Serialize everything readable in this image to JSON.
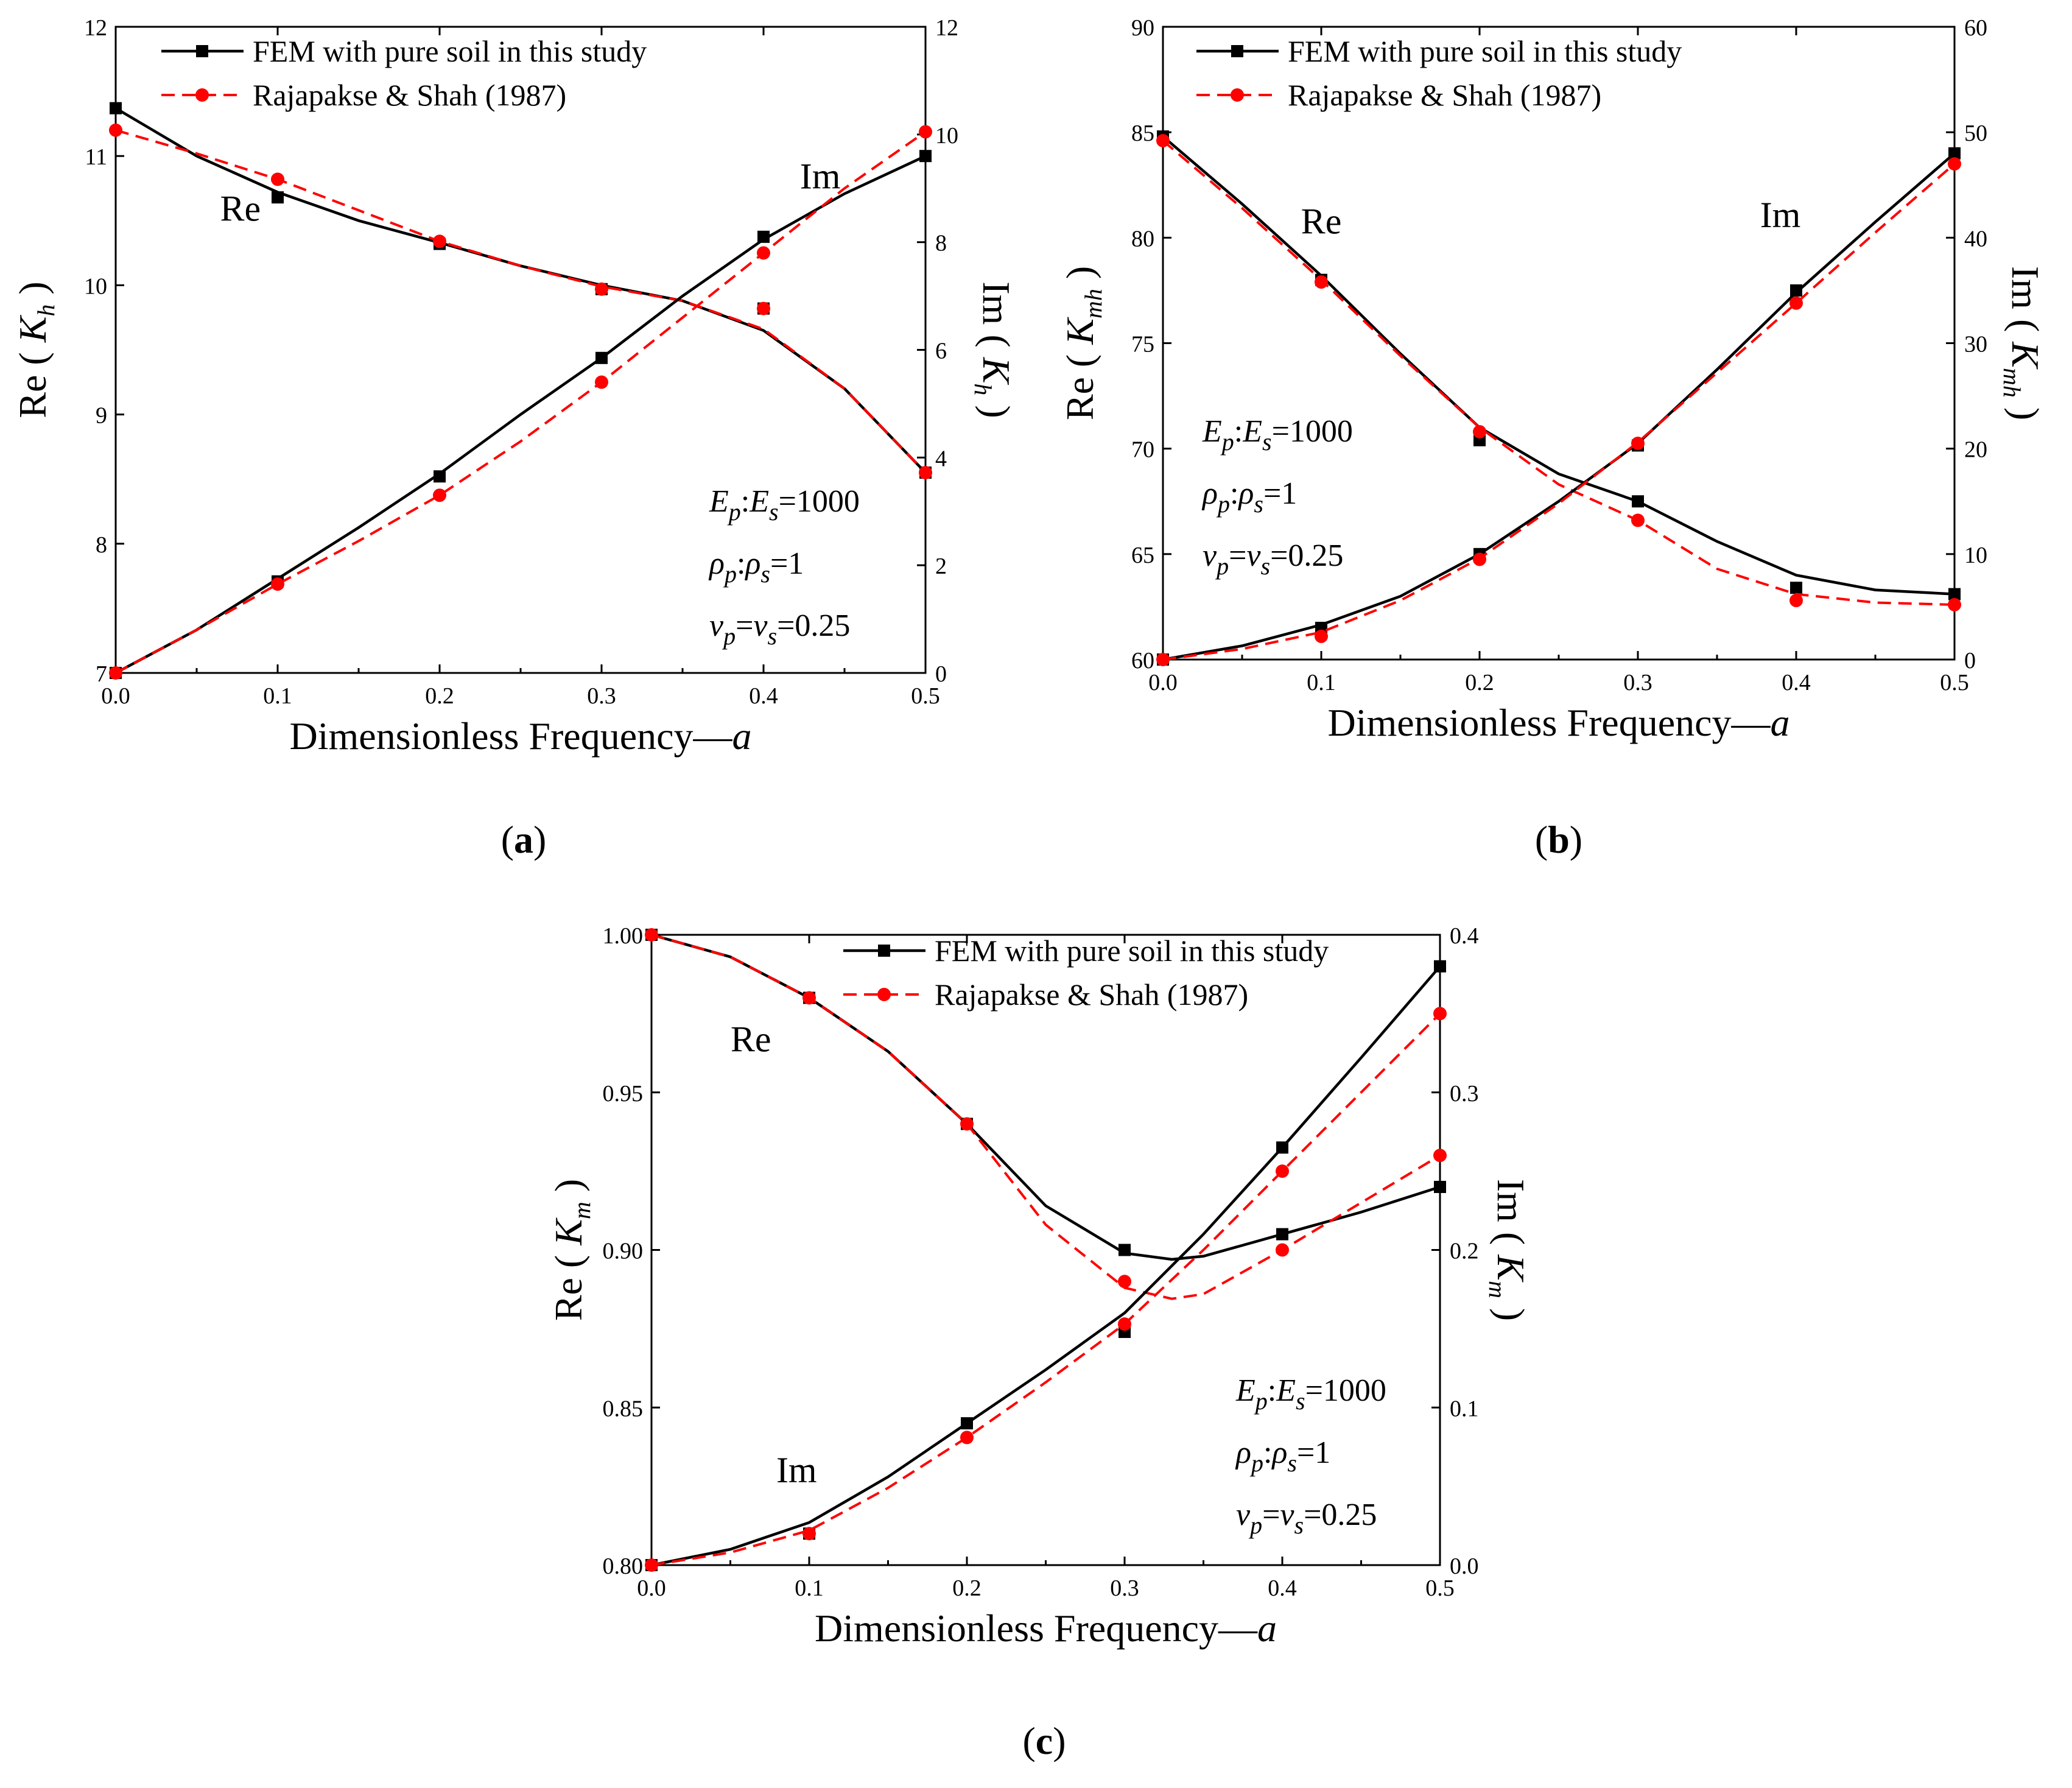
{
  "legend_labels": [
    "FEM with pure soil in this study",
    "Rajapakse & Shah (1987)"
  ],
  "series_colors": {
    "fem": "#000000",
    "ref": "#ff0000"
  },
  "params": {
    "line1": [
      "E",
      "p",
      ":",
      "E",
      "s",
      "=1000"
    ],
    "line2": [
      "ρ",
      "p",
      ":",
      "ρ",
      "s",
      "=1"
    ],
    "line3": [
      "ν",
      "p",
      "=",
      "ν",
      "s",
      "=0.25"
    ]
  },
  "chart_data": [
    {
      "type": "line",
      "panel_label": "(a)",
      "panel_main": "a",
      "xlabel": "Dimensionless Frequency—",
      "xlabel_var": "a",
      "ylabel_left": {
        "prefix": "Re (",
        "sym": "K",
        "sub": "h",
        "suffix": ")"
      },
      "ylabel_right": {
        "prefix": "Im (",
        "sym": "K",
        "sub": "h",
        "suffix": ")"
      },
      "xlim": [
        0,
        0.5
      ],
      "xticks": [
        "0.0",
        "0.1",
        "0.2",
        "0.3",
        "0.4",
        "0.5"
      ],
      "ylim_left": [
        7,
        12
      ],
      "yticks_left": [
        "7",
        "8",
        "9",
        "10",
        "11",
        "12"
      ],
      "ylim_right": [
        0,
        12
      ],
      "yticks_right": [
        "0",
        "2",
        "4",
        "6",
        "8",
        "10",
        "12"
      ],
      "annotations": [
        {
          "text": "Re",
          "x": 0.077,
          "y": 10.5,
          "axis": "left"
        },
        {
          "text": "Im",
          "x": 0.435,
          "y": 9.0,
          "axis": "right"
        }
      ],
      "x": [
        0,
        0.1,
        0.2,
        0.3,
        0.4,
        0.5
      ],
      "series": [
        {
          "name": "FEM with pure soil in this study",
          "part": "Re",
          "axis": "left",
          "style": "fem",
          "points": [
            11.37,
            10.68,
            10.32,
            9.97,
            9.82,
            8.55
          ],
          "curve": [
            [
              0,
              11.37
            ],
            [
              0.05,
              11.0
            ],
            [
              0.1,
              10.72
            ],
            [
              0.15,
              10.5
            ],
            [
              0.2,
              10.33
            ],
            [
              0.25,
              10.15
            ],
            [
              0.3,
              10.0
            ],
            [
              0.35,
              9.88
            ],
            [
              0.4,
              9.65
            ],
            [
              0.45,
              9.2
            ],
            [
              0.5,
              8.55
            ]
          ]
        },
        {
          "name": "Rajapakse & Shah (1987)",
          "part": "Re",
          "axis": "left",
          "style": "ref",
          "points": [
            11.2,
            10.82,
            10.34,
            9.97,
            9.82,
            8.55
          ],
          "curve": [
            [
              0,
              11.2
            ],
            [
              0.05,
              11.02
            ],
            [
              0.1,
              10.82
            ],
            [
              0.15,
              10.58
            ],
            [
              0.2,
              10.34
            ],
            [
              0.25,
              10.15
            ],
            [
              0.3,
              9.99
            ],
            [
              0.35,
              9.88
            ],
            [
              0.4,
              9.66
            ],
            [
              0.45,
              9.2
            ],
            [
              0.5,
              8.55
            ]
          ]
        },
        {
          "name": "FEM with pure soil in this study",
          "part": "Im",
          "axis": "right",
          "style": "fem",
          "points": [
            0,
            1.7,
            3.65,
            5.85,
            8.1,
            9.6
          ],
          "curve": [
            [
              0,
              0
            ],
            [
              0.05,
              0.8
            ],
            [
              0.1,
              1.75
            ],
            [
              0.15,
              2.7
            ],
            [
              0.2,
              3.7
            ],
            [
              0.25,
              4.8
            ],
            [
              0.3,
              5.85
            ],
            [
              0.35,
              7.0
            ],
            [
              0.4,
              8.05
            ],
            [
              0.45,
              8.9
            ],
            [
              0.5,
              9.6
            ]
          ]
        },
        {
          "name": "Rajapakse & Shah (1987)",
          "part": "Im",
          "axis": "right",
          "style": "ref",
          "points": [
            0,
            1.65,
            3.3,
            5.4,
            7.8,
            10.05
          ],
          "curve": [
            [
              0,
              0
            ],
            [
              0.05,
              0.8
            ],
            [
              0.1,
              1.65
            ],
            [
              0.15,
              2.45
            ],
            [
              0.2,
              3.3
            ],
            [
              0.25,
              4.3
            ],
            [
              0.3,
              5.4
            ],
            [
              0.35,
              6.6
            ],
            [
              0.4,
              7.8
            ],
            [
              0.45,
              9.0
            ],
            [
              0.5,
              10.05
            ]
          ]
        }
      ]
    },
    {
      "type": "line",
      "panel_label": "(b)",
      "panel_main": "b",
      "xlabel": "Dimensionless Frequency—",
      "xlabel_var": "a",
      "ylabel_left": {
        "prefix": "Re (",
        "sym": "K",
        "sub": "mh",
        "suffix": ")"
      },
      "ylabel_right": {
        "prefix": "Im (",
        "sym": "K",
        "sub": "mh",
        "suffix": ")"
      },
      "xlim": [
        0,
        0.5
      ],
      "xticks": [
        "0.0",
        "0.1",
        "0.2",
        "0.3",
        "0.4",
        "0.5"
      ],
      "ylim_left": [
        60,
        90
      ],
      "yticks_left": [
        "60",
        "65",
        "70",
        "75",
        "80",
        "85",
        "90"
      ],
      "ylim_right": [
        0,
        60
      ],
      "yticks_right": [
        "0",
        "10",
        "20",
        "30",
        "40",
        "50",
        "60"
      ],
      "annotations": [
        {
          "text": "Re",
          "x": 0.1,
          "y": 80.2,
          "axis": "left"
        },
        {
          "text": "Im",
          "x": 0.39,
          "y": 41.0,
          "axis": "right"
        }
      ],
      "x": [
        0,
        0.1,
        0.2,
        0.3,
        0.4,
        0.5
      ],
      "series": [
        {
          "name": "FEM with pure soil in this study",
          "part": "Re",
          "axis": "left",
          "style": "fem",
          "points": [
            84.8,
            78.0,
            70.4,
            67.5,
            63.4,
            63.1
          ],
          "curve": [
            [
              0,
              84.8
            ],
            [
              0.05,
              81.6
            ],
            [
              0.1,
              78.2
            ],
            [
              0.15,
              74.5
            ],
            [
              0.2,
              71.0
            ],
            [
              0.25,
              68.8
            ],
            [
              0.3,
              67.5
            ],
            [
              0.35,
              65.6
            ],
            [
              0.4,
              64.0
            ],
            [
              0.45,
              63.3
            ],
            [
              0.5,
              63.1
            ]
          ]
        },
        {
          "name": "Rajapakse & Shah (1987)",
          "part": "Re",
          "axis": "left",
          "style": "ref",
          "points": [
            84.6,
            77.9,
            70.8,
            66.6,
            62.8,
            62.6
          ],
          "curve": [
            [
              0,
              84.6
            ],
            [
              0.05,
              81.4
            ],
            [
              0.1,
              78.0
            ],
            [
              0.15,
              74.4
            ],
            [
              0.2,
              71.0
            ],
            [
              0.25,
              68.3
            ],
            [
              0.3,
              66.6
            ],
            [
              0.35,
              64.3
            ],
            [
              0.4,
              63.1
            ],
            [
              0.45,
              62.7
            ],
            [
              0.5,
              62.6
            ]
          ]
        },
        {
          "name": "FEM with pure soil in this study",
          "part": "Im",
          "axis": "right",
          "style": "fem",
          "points": [
            0,
            3.0,
            10.0,
            20.3,
            35.0,
            48.0
          ],
          "curve": [
            [
              0,
              0
            ],
            [
              0.05,
              1.3
            ],
            [
              0.1,
              3.3
            ],
            [
              0.15,
              6.0
            ],
            [
              0.2,
              10.0
            ],
            [
              0.25,
              15.0
            ],
            [
              0.3,
              20.5
            ],
            [
              0.35,
              27.5
            ],
            [
              0.4,
              34.8
            ],
            [
              0.45,
              41.5
            ],
            [
              0.5,
              48.0
            ]
          ]
        },
        {
          "name": "Rajapakse & Shah (1987)",
          "part": "Im",
          "axis": "right",
          "style": "ref",
          "points": [
            0,
            2.2,
            9.5,
            20.5,
            33.8,
            47.0
          ],
          "curve": [
            [
              0,
              0
            ],
            [
              0.05,
              1.0
            ],
            [
              0.1,
              2.6
            ],
            [
              0.15,
              5.6
            ],
            [
              0.2,
              9.6
            ],
            [
              0.25,
              14.8
            ],
            [
              0.3,
              20.6
            ],
            [
              0.35,
              27.2
            ],
            [
              0.4,
              33.8
            ],
            [
              0.45,
              40.5
            ],
            [
              0.5,
              47.0
            ]
          ]
        }
      ]
    },
    {
      "type": "line",
      "panel_label": "(c)",
      "panel_main": "c",
      "xlabel": "Dimensionless Frequency—",
      "xlabel_var": "a",
      "ylabel_left": {
        "prefix": "Re (",
        "sym": "K",
        "sub": "m",
        "suffix": ")"
      },
      "ylabel_right": {
        "prefix": "Im (",
        "sym": "K",
        "sub": "m",
        "suffix": ")"
      },
      "xlim": [
        0,
        0.5
      ],
      "xticks": [
        "0.0",
        "0.1",
        "0.2",
        "0.3",
        "0.4",
        "0.5"
      ],
      "ylim_left": [
        0.8,
        1.0
      ],
      "yticks_left": [
        "0.80",
        "0.85",
        "0.90",
        "0.95",
        "1.00"
      ],
      "ylim_right": [
        0,
        0.4
      ],
      "yticks_right": [
        "0.0",
        "0.1",
        "0.2",
        "0.3",
        "0.4"
      ],
      "annotations": [
        {
          "text": "Re",
          "x": 0.063,
          "y": 0.963,
          "axis": "left"
        },
        {
          "text": "Im",
          "x": 0.092,
          "y": 0.0525,
          "axis": "right"
        }
      ],
      "x": [
        0,
        0.1,
        0.2,
        0.3,
        0.4,
        0.5
      ],
      "series": [
        {
          "name": "FEM with pure soil in this study",
          "part": "Re",
          "axis": "left",
          "style": "fem",
          "points": [
            1.0,
            0.98,
            0.94,
            0.9,
            0.905,
            0.92
          ],
          "curve": [
            [
              0,
              1.0
            ],
            [
              0.05,
              0.993
            ],
            [
              0.1,
              0.98
            ],
            [
              0.15,
              0.963
            ],
            [
              0.2,
              0.94
            ],
            [
              0.25,
              0.914
            ],
            [
              0.3,
              0.899
            ],
            [
              0.33,
              0.897
            ],
            [
              0.35,
              0.898
            ],
            [
              0.4,
              0.905
            ],
            [
              0.45,
              0.912
            ],
            [
              0.5,
              0.92
            ]
          ]
        },
        {
          "name": "Rajapakse & Shah (1987)",
          "part": "Re",
          "axis": "left",
          "style": "ref",
          "points": [
            1.0,
            0.98,
            0.94,
            0.89,
            0.9,
            0.93
          ],
          "curve": [
            [
              0,
              1.0
            ],
            [
              0.05,
              0.993
            ],
            [
              0.1,
              0.98
            ],
            [
              0.15,
              0.963
            ],
            [
              0.2,
              0.94
            ],
            [
              0.25,
              0.908
            ],
            [
              0.3,
              0.888
            ],
            [
              0.33,
              0.8845
            ],
            [
              0.35,
              0.886
            ],
            [
              0.4,
              0.9
            ],
            [
              0.45,
              0.915
            ],
            [
              0.5,
              0.93
            ]
          ]
        },
        {
          "name": "FEM with pure soil in this study",
          "part": "Im",
          "axis": "right",
          "style": "fem",
          "points": [
            0,
            0.02,
            0.09,
            0.148,
            0.265,
            0.38
          ],
          "curve": [
            [
              0,
              0
            ],
            [
              0.05,
              0.01
            ],
            [
              0.1,
              0.027
            ],
            [
              0.15,
              0.056
            ],
            [
              0.2,
              0.09
            ],
            [
              0.25,
              0.124
            ],
            [
              0.3,
              0.16
            ],
            [
              0.35,
              0.21
            ],
            [
              0.4,
              0.265
            ],
            [
              0.45,
              0.322
            ],
            [
              0.5,
              0.38
            ]
          ]
        },
        {
          "name": "Rajapakse & Shah (1987)",
          "part": "Im",
          "axis": "right",
          "style": "ref",
          "points": [
            0,
            0.02,
            0.081,
            0.153,
            0.25,
            0.35
          ],
          "curve": [
            [
              0,
              0
            ],
            [
              0.05,
              0.008
            ],
            [
              0.1,
              0.022
            ],
            [
              0.15,
              0.049
            ],
            [
              0.2,
              0.081
            ],
            [
              0.25,
              0.116
            ],
            [
              0.3,
              0.153
            ],
            [
              0.35,
              0.2
            ],
            [
              0.4,
              0.25
            ],
            [
              0.45,
              0.3
            ],
            [
              0.5,
              0.35
            ]
          ]
        }
      ]
    }
  ]
}
